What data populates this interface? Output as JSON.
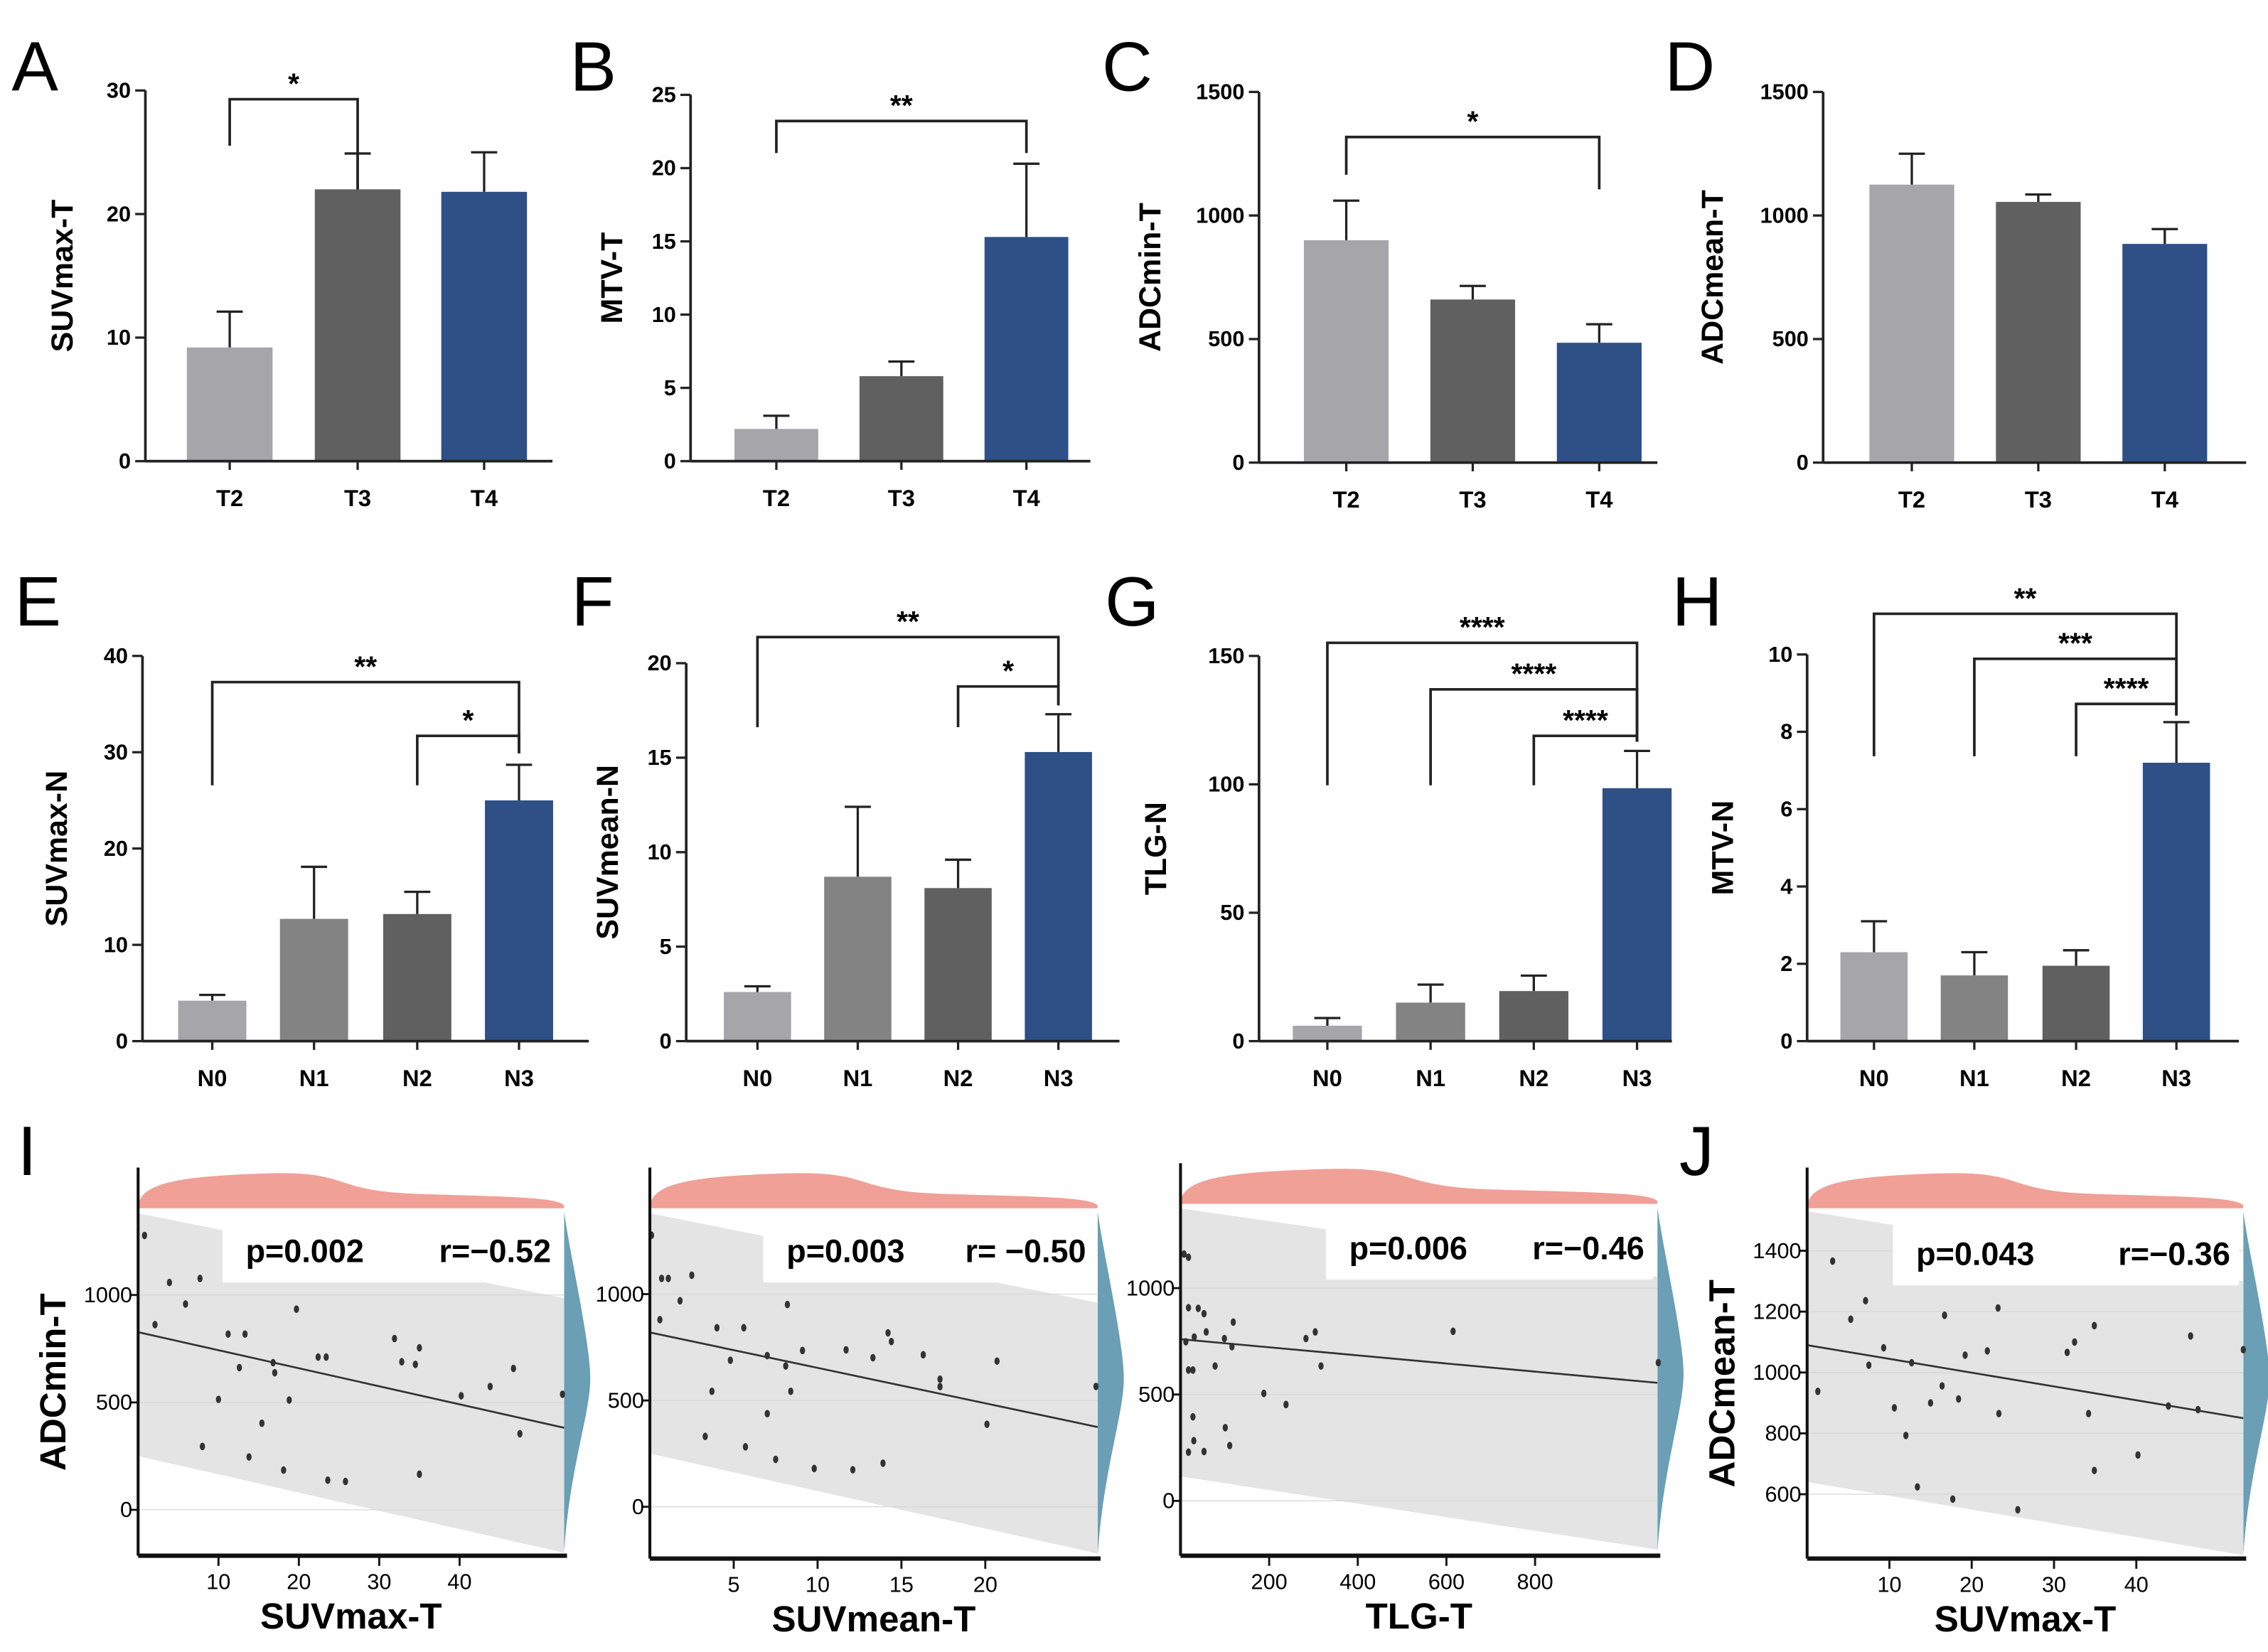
{
  "colors": {
    "gray_light": "#a5a5aa",
    "gray_mid": "#838383",
    "gray_dark": "#606060",
    "blue": "#2e5087",
    "band": "#e4e4e4",
    "density_top": "#f0a097",
    "density_right": "#6a9fb5",
    "point": "#333333"
  },
  "chart_data": [
    {
      "panel": "A",
      "type": "bar",
      "ylabel": "SUVmax-T",
      "ylim": [
        0,
        30
      ],
      "yticks": [
        "0",
        "10",
        "20",
        "30"
      ],
      "categories": [
        "T2",
        "T3",
        "T4"
      ],
      "values": [
        9.2,
        22.0,
        21.8
      ],
      "errors_upper": [
        12.1,
        24.9,
        25.0
      ],
      "bar_colors": [
        "gray_light",
        "gray_dark",
        "blue"
      ],
      "significance": [
        {
          "from": "T2",
          "to": "T3",
          "label": "*"
        }
      ]
    },
    {
      "panel": "B",
      "type": "bar",
      "ylabel": "MTV-T",
      "ylim": [
        0,
        25
      ],
      "yticks": [
        "0",
        "5",
        "10",
        "15",
        "20",
        "25"
      ],
      "categories": [
        "T2",
        "T3",
        "T4"
      ],
      "values": [
        2.2,
        5.8,
        15.3
      ],
      "errors_upper": [
        3.1,
        6.8,
        20.3
      ],
      "bar_colors": [
        "gray_light",
        "gray_dark",
        "blue"
      ],
      "significance": [
        {
          "from": "T2",
          "to": "T4",
          "label": "**"
        }
      ]
    },
    {
      "panel": "C",
      "type": "bar",
      "ylabel": "ADCmin-T",
      "ylim": [
        0,
        1500
      ],
      "yticks": [
        "0",
        "500",
        "1000",
        "1500"
      ],
      "categories": [
        "T2",
        "T3",
        "T4"
      ],
      "values": [
        900,
        660,
        485
      ],
      "errors_upper": [
        1060,
        715,
        560
      ],
      "bar_colors": [
        "gray_light",
        "gray_dark",
        "blue"
      ],
      "significance": [
        {
          "from": "T2",
          "to": "T4",
          "label": "*"
        }
      ]
    },
    {
      "panel": "D",
      "type": "bar",
      "ylabel": "ADCmean-T",
      "ylim": [
        0,
        1500
      ],
      "yticks": [
        "0",
        "500",
        "1000",
        "1500"
      ],
      "categories": [
        "T2",
        "T3",
        "T4"
      ],
      "values": [
        1125,
        1055,
        885
      ],
      "errors_upper": [
        1250,
        1085,
        945
      ],
      "bar_colors": [
        "gray_light",
        "gray_dark",
        "blue"
      ],
      "significance": []
    },
    {
      "panel": "E",
      "type": "bar",
      "ylabel": "SUVmax-N",
      "ylim": [
        0,
        40
      ],
      "yticks": [
        "0",
        "10",
        "20",
        "30",
        "40"
      ],
      "categories": [
        "N0",
        "N1",
        "N2",
        "N3"
      ],
      "values": [
        4.2,
        12.7,
        13.2,
        25.0
      ],
      "errors_upper": [
        4.8,
        18.1,
        15.5,
        28.7
      ],
      "bar_colors": [
        "gray_light",
        "gray_mid",
        "gray_dark",
        "blue"
      ],
      "significance": [
        {
          "from": "N0",
          "to": "N3",
          "label": "**"
        },
        {
          "from": "N2",
          "to": "N3",
          "label": "*"
        }
      ]
    },
    {
      "panel": "F",
      "type": "bar",
      "ylabel": "SUVmean-N",
      "ylim": [
        0,
        20
      ],
      "yticks": [
        "0",
        "5",
        "10",
        "15",
        "20"
      ],
      "categories": [
        "N0",
        "N1",
        "N2",
        "N3"
      ],
      "values": [
        2.6,
        8.7,
        8.1,
        15.3
      ],
      "errors_upper": [
        2.9,
        12.4,
        9.6,
        17.3
      ],
      "bar_colors": [
        "gray_light",
        "gray_mid",
        "gray_dark",
        "blue"
      ],
      "significance": [
        {
          "from": "N0",
          "to": "N3",
          "label": "**"
        },
        {
          "from": "N2",
          "to": "N3",
          "label": "*"
        }
      ]
    },
    {
      "panel": "G",
      "type": "bar",
      "ylabel": "TLG-N",
      "ylim": [
        0,
        150
      ],
      "yticks": [
        "0",
        "50",
        "100",
        "150"
      ],
      "categories": [
        "N0",
        "N1",
        "N2",
        "N3"
      ],
      "values": [
        6,
        15,
        19.5,
        98.5
      ],
      "errors_upper": [
        9,
        22,
        25.5,
        113
      ],
      "bar_colors": [
        "gray_light",
        "gray_mid",
        "gray_dark",
        "blue"
      ],
      "significance": [
        {
          "from": "N0",
          "to": "N3",
          "label": "****"
        },
        {
          "from": "N1",
          "to": "N3",
          "label": "****"
        },
        {
          "from": "N2",
          "to": "N3",
          "label": "****"
        }
      ]
    },
    {
      "panel": "H",
      "type": "bar",
      "ylabel": "MTV-N",
      "ylim": [
        0,
        10
      ],
      "yticks": [
        "0",
        "2",
        "4",
        "6",
        "8",
        "10"
      ],
      "categories": [
        "N0",
        "N1",
        "N2",
        "N3"
      ],
      "values": [
        2.3,
        1.7,
        1.95,
        7.2
      ],
      "errors_upper": [
        3.1,
        2.3,
        2.35,
        8.25
      ],
      "bar_colors": [
        "gray_light",
        "gray_mid",
        "gray_dark",
        "blue"
      ],
      "significance": [
        {
          "from": "N0",
          "to": "N3",
          "label": "**"
        },
        {
          "from": "N1",
          "to": "N3",
          "label": "***"
        },
        {
          "from": "N2",
          "to": "N3",
          "label": "****"
        }
      ]
    },
    {
      "panel": "I",
      "type": "scatter",
      "xlabel": "SUVmax-T",
      "ylabel": "ADCmin-T",
      "stat_p": "p=0.002",
      "stat_r": "r=−0.52",
      "xlim": [
        0,
        53
      ],
      "ylim": [
        -200,
        1390
      ],
      "xticks": [
        10,
        20,
        30,
        40
      ],
      "yticks": [
        0,
        500,
        1000
      ],
      "fit": [
        [
          0,
          827
        ],
        [
          53,
          382
        ]
      ],
      "ci_upper": [
        [
          0,
          1380
        ],
        [
          53,
          985
        ]
      ],
      "ci_lower": [
        [
          0,
          250
        ],
        [
          53,
          -200
        ]
      ],
      "points": [
        [
          0.8,
          1277
        ],
        [
          2.1,
          862
        ],
        [
          3.9,
          1058
        ],
        [
          5.9,
          958
        ],
        [
          7.7,
          1077
        ],
        [
          8,
          295
        ],
        [
          10,
          514
        ],
        [
          11.2,
          818
        ],
        [
          12.6,
          662
        ],
        [
          13.3,
          818
        ],
        [
          13.8,
          246
        ],
        [
          15.4,
          403
        ],
        [
          16.8,
          685
        ],
        [
          17,
          638
        ],
        [
          18.1,
          185
        ],
        [
          18.8,
          511
        ],
        [
          19.7,
          934
        ],
        [
          22.4,
          711
        ],
        [
          23.4,
          711
        ],
        [
          23.6,
          138
        ],
        [
          25.8,
          132
        ],
        [
          31.9,
          797
        ],
        [
          32.8,
          689
        ],
        [
          34.5,
          677
        ],
        [
          35,
          754
        ],
        [
          35,
          166
        ],
        [
          40.2,
          531
        ],
        [
          43.8,
          574
        ],
        [
          46.7,
          658
        ],
        [
          47.5,
          354
        ],
        [
          52.8,
          538
        ]
      ]
    },
    {
      "panel": "I",
      "type": "scatter",
      "xlabel": "SUVmean-T",
      "ylabel": "",
      "stat_p": "p=0.003",
      "stat_r": "r= −0.50",
      "xlim": [
        0,
        26.7
      ],
      "ylim": [
        -230,
        1390
      ],
      "xticks": [
        5,
        10,
        15,
        20
      ],
      "yticks": [
        0,
        500,
        1000
      ],
      "fit": [
        [
          0,
          820
        ],
        [
          26.7,
          375
        ]
      ],
      "ci_upper": [
        [
          0,
          1380
        ],
        [
          26.7,
          960
        ]
      ],
      "ci_lower": [
        [
          0,
          250
        ],
        [
          26.7,
          -220
        ]
      ],
      "points": [
        [
          0.1,
          1277
        ],
        [
          0.7,
          1074
        ],
        [
          1.1,
          1074
        ],
        [
          1.8,
          969
        ],
        [
          0.6,
          880
        ],
        [
          2.5,
          1089
        ],
        [
          3.3,
          331
        ],
        [
          3.7,
          543
        ],
        [
          4,
          842
        ],
        [
          4.8,
          689
        ],
        [
          5.6,
          842
        ],
        [
          5.7,
          282
        ],
        [
          7,
          438
        ],
        [
          7,
          711
        ],
        [
          7.5,
          223
        ],
        [
          8.1,
          662
        ],
        [
          8.2,
          951
        ],
        [
          8.4,
          543
        ],
        [
          9.1,
          735
        ],
        [
          9.8,
          180
        ],
        [
          11.7,
          738
        ],
        [
          12.1,
          174
        ],
        [
          13.3,
          701
        ],
        [
          13.9,
          205
        ],
        [
          14.2,
          818
        ],
        [
          14.4,
          777
        ],
        [
          16.3,
          715
        ],
        [
          17.3,
          600
        ],
        [
          17.3,
          565
        ],
        [
          20.1,
          388
        ],
        [
          20.7,
          685
        ],
        [
          26.6,
          566
        ]
      ]
    },
    {
      "panel": "I",
      "type": "scatter",
      "xlabel": "TLG-T",
      "ylabel": "",
      "stat_p": "p=0.006",
      "stat_r": "r=−0.46",
      "xlim": [
        0,
        1076
      ],
      "ylim": [
        -244,
        1382
      ],
      "xticks": [
        200,
        400,
        600,
        800
      ],
      "yticks": [
        0,
        500,
        1000
      ],
      "fit": [
        [
          0,
          760
        ],
        [
          1076,
          555
        ]
      ],
      "ci_upper": [
        [
          0,
          1375
        ],
        [
          1076,
          1053
        ]
      ],
      "ci_lower": [
        [
          0,
          115
        ],
        [
          1076,
          -229
        ]
      ],
      "points": [
        [
          8,
          1160
        ],
        [
          18,
          1145
        ],
        [
          18,
          908
        ],
        [
          40,
          905
        ],
        [
          53,
          880
        ],
        [
          31,
          770
        ],
        [
          58,
          794
        ],
        [
          12,
          748
        ],
        [
          99,
          763
        ],
        [
          116,
          725
        ],
        [
          119,
          840
        ],
        [
          78,
          634
        ],
        [
          18,
          615
        ],
        [
          28,
          615
        ],
        [
          28,
          395
        ],
        [
          30,
          283
        ],
        [
          18,
          229
        ],
        [
          53,
          232
        ],
        [
          101,
          344
        ],
        [
          111,
          260
        ],
        [
          188,
          505
        ],
        [
          238,
          453
        ],
        [
          283,
          763
        ],
        [
          304,
          794
        ],
        [
          317,
          634
        ],
        [
          615,
          797
        ],
        [
          1078,
          650
        ]
      ]
    },
    {
      "panel": "J",
      "type": "scatter",
      "xlabel": "SUVmax-T",
      "ylabel": "ADCmean-T",
      "stat_p": "p=0.043",
      "stat_r": "r=−0.36",
      "xlim": [
        0,
        53
      ],
      "ylim": [
        398,
        1530
      ],
      "xticks": [
        10,
        20,
        30,
        40
      ],
      "yticks": [
        600,
        800,
        1000,
        1200,
        1400
      ],
      "fit": [
        [
          0,
          1090
        ],
        [
          53,
          850
        ]
      ],
      "ci_upper": [
        [
          0,
          1530
        ],
        [
          53,
          1300
        ]
      ],
      "ci_lower": [
        [
          0,
          640
        ],
        [
          53,
          400
        ]
      ],
      "points": [
        [
          3.1,
          1366
        ],
        [
          1.3,
          938
        ],
        [
          5.3,
          1175
        ],
        [
          7.1,
          1236
        ],
        [
          7.5,
          1024
        ],
        [
          9.3,
          1081
        ],
        [
          10.6,
          884
        ],
        [
          12,
          793
        ],
        [
          12.7,
          1032
        ],
        [
          13.4,
          624
        ],
        [
          15,
          900
        ],
        [
          16.4,
          956
        ],
        [
          16.7,
          1188
        ],
        [
          17.7,
          584
        ],
        [
          18.4,
          913
        ],
        [
          19.2,
          1057
        ],
        [
          21.9,
          1071
        ],
        [
          23.2,
          1212
        ],
        [
          23.3,
          865
        ],
        [
          25.6,
          549
        ],
        [
          31.6,
          1066
        ],
        [
          32.5,
          1100
        ],
        [
          34.2,
          865
        ],
        [
          34.9,
          1154
        ],
        [
          34.9,
          678
        ],
        [
          40.2,
          729
        ],
        [
          43.9,
          890
        ],
        [
          46.6,
          1120
        ],
        [
          47.5,
          878
        ],
        [
          53,
          1075
        ]
      ]
    }
  ]
}
